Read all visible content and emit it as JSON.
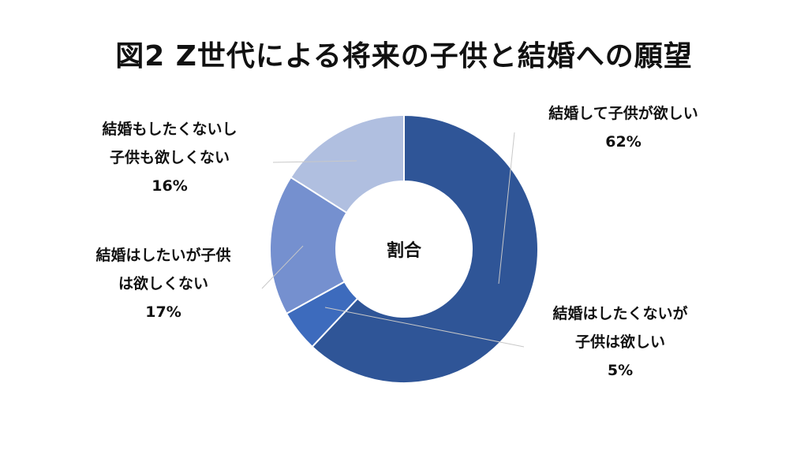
{
  "chart_data": {
    "type": "pie",
    "title": "図2 Z世代による将来の子供と結婚への願望",
    "center_label": "割合",
    "slices": [
      {
        "label_lines": [
          "結婚して子供が欲しい"
        ],
        "value": 62,
        "value_label": "62%",
        "color": "#2f5597"
      },
      {
        "label_lines": [
          "結婚はしたくないが",
          "子供は欲しい"
        ],
        "value": 5,
        "value_label": "5%",
        "color": "#3d6bbd"
      },
      {
        "label_lines": [
          "結婚はしたいが子供",
          "は欲しくない"
        ],
        "value": 17,
        "value_label": "17%",
        "color": "#7590cf"
      },
      {
        "label_lines": [
          "結婚もしたくないし",
          "子供も欲しくない"
        ],
        "value": 16,
        "value_label": "16%",
        "color": "#b0bfe0"
      }
    ],
    "legend": "none",
    "style": "doughnut"
  }
}
